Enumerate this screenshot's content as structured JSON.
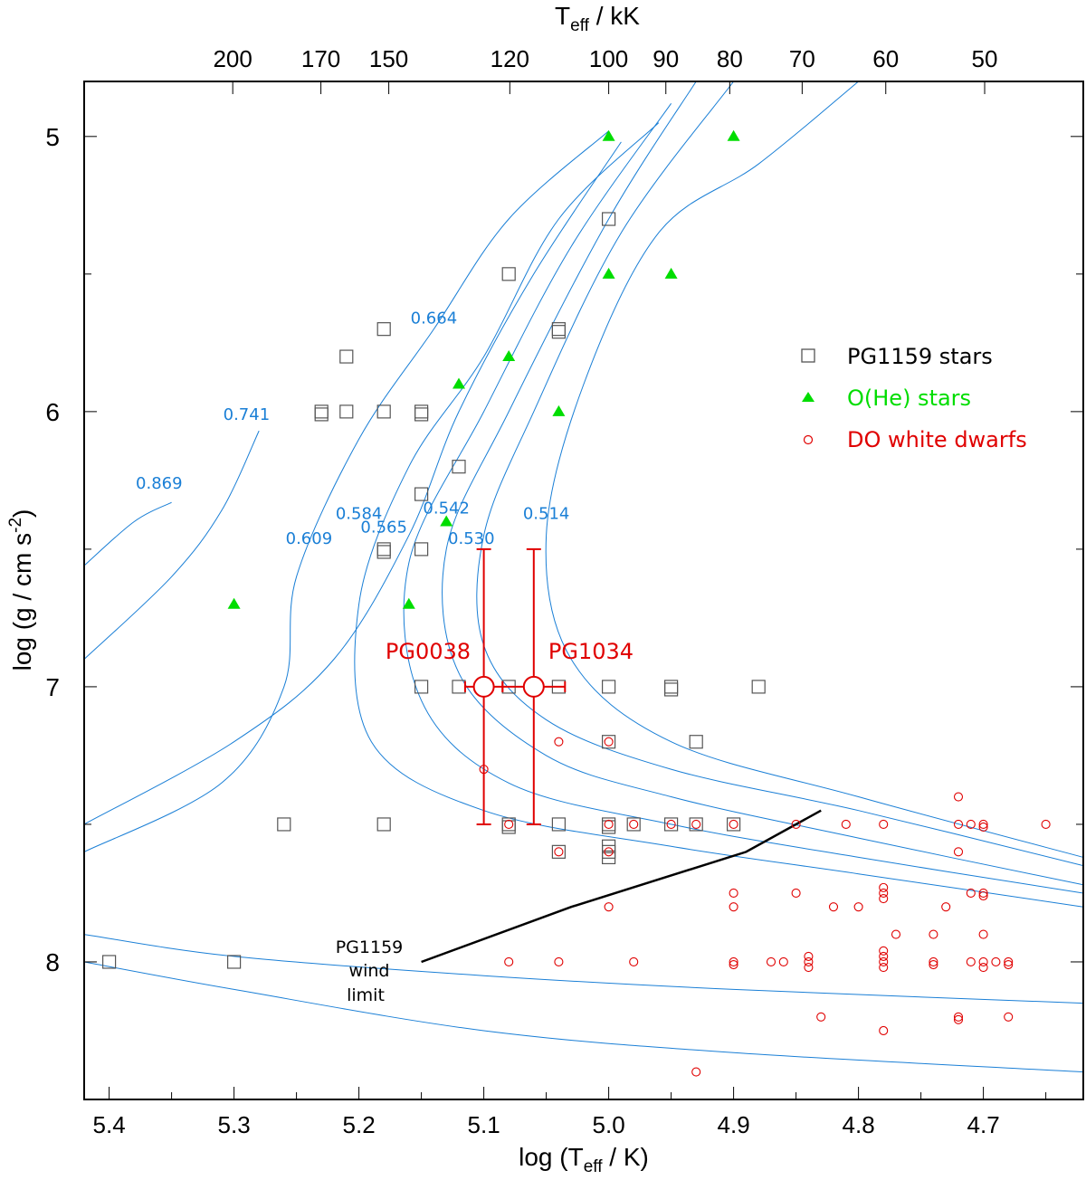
{
  "chart_data": {
    "type": "scatter",
    "title": "",
    "xlabel": "log (T",
    "xlabel_sub": "eff",
    "xlabel_tail": " / K)",
    "ylabel": "log (g / cm s",
    "ylabel_sup": "-2",
    "ylabel_tail": ")",
    "top_xlabel": "T",
    "top_xlabel_sub": "eff",
    "top_xlabel_tail": "  / kK",
    "xlim": [
      5.42,
      4.62
    ],
    "ylim": [
      4.8,
      8.5
    ],
    "x_ticks": [
      {
        "v": 5.4,
        "t": "5.4"
      },
      {
        "v": 5.3,
        "t": "5.3"
      },
      {
        "v": 5.2,
        "t": "5.2"
      },
      {
        "v": 5.1,
        "t": "5.1"
      },
      {
        "v": 5.0,
        "t": "5.0"
      },
      {
        "v": 4.9,
        "t": "4.9"
      },
      {
        "v": 4.8,
        "t": "4.8"
      },
      {
        "v": 4.7,
        "t": "4.7"
      }
    ],
    "y_ticks": [
      {
        "v": 5,
        "t": "5"
      },
      {
        "v": 6,
        "t": "6"
      },
      {
        "v": 7,
        "t": "7"
      },
      {
        "v": 8,
        "t": "8"
      }
    ],
    "top_ticks": [
      {
        "v": 200,
        "t": "200"
      },
      {
        "v": 170,
        "t": "170"
      },
      {
        "v": 150,
        "t": "150"
      },
      {
        "v": 120,
        "t": "120"
      },
      {
        "v": 100,
        "t": "100"
      },
      {
        "v": 90,
        "t": "90"
      },
      {
        "v": 80,
        "t": "80"
      },
      {
        "v": 70,
        "t": "70"
      },
      {
        "v": 60,
        "t": "60"
      },
      {
        "v": 50,
        "t": "50"
      }
    ],
    "legend": {
      "placement": "upper-right",
      "entries": [
        {
          "label": "PG1159 stars",
          "marker": "square",
          "color": "#555555"
        },
        {
          "label": "O(He) stars",
          "marker": "triangle",
          "color": "#00dd00"
        },
        {
          "label": "DO white dwarfs",
          "marker": "circle",
          "color": "#e00000"
        }
      ]
    },
    "colors": {
      "tracks": "#1a7fd6",
      "pg1159": "#555555",
      "ohe": "#00dd00",
      "do": "#e00000",
      "wind": "#000000"
    },
    "track_labels": [
      {
        "text": "0.869",
        "x": 5.36,
        "y": 6.28
      },
      {
        "text": "0.741",
        "x": 5.29,
        "y": 6.03
      },
      {
        "text": "0.664",
        "x": 5.14,
        "y": 5.68
      },
      {
        "text": "0.609",
        "x": 5.24,
        "y": 6.48
      },
      {
        "text": "0.584",
        "x": 5.2,
        "y": 6.39
      },
      {
        "text": "0.565",
        "x": 5.18,
        "y": 6.44
      },
      {
        "text": "0.542",
        "x": 5.13,
        "y": 6.37
      },
      {
        "text": "0.530",
        "x": 5.11,
        "y": 6.48
      },
      {
        "text": "0.514",
        "x": 5.05,
        "y": 6.39
      }
    ],
    "tracks": [
      {
        "mass": "0.869",
        "points": [
          [
            5.42,
            6.56
          ],
          [
            5.38,
            6.4
          ],
          [
            5.35,
            6.33
          ]
        ]
      },
      {
        "mass": "0.741",
        "points": [
          [
            5.42,
            6.9
          ],
          [
            5.35,
            6.6
          ],
          [
            5.31,
            6.36
          ],
          [
            5.28,
            6.07
          ]
        ]
      },
      {
        "mass": "0.664",
        "points": [
          [
            5.42,
            7.5
          ],
          [
            5.3,
            7.2
          ],
          [
            5.22,
            6.9
          ],
          [
            5.16,
            6.45
          ],
          [
            5.12,
            6.0
          ],
          [
            5.06,
            5.5
          ],
          [
            4.99,
            5.02
          ]
        ]
      },
      {
        "mass": "0.609",
        "points": [
          [
            5.42,
            7.6
          ],
          [
            5.31,
            7.35
          ],
          [
            5.26,
            7.0
          ],
          [
            5.25,
            6.6
          ],
          [
            5.2,
            6.1
          ],
          [
            5.14,
            5.7
          ],
          [
            5.08,
            5.3
          ],
          [
            5.0,
            4.98
          ]
        ]
      },
      {
        "mass": "0.584",
        "points": [
          [
            4.62,
            7.8
          ],
          [
            4.8,
            7.68
          ],
          [
            4.95,
            7.58
          ],
          [
            5.1,
            7.45
          ],
          [
            5.19,
            7.2
          ],
          [
            5.2,
            6.7
          ],
          [
            5.16,
            6.2
          ],
          [
            5.1,
            5.8
          ],
          [
            5.04,
            5.3
          ],
          [
            4.96,
            4.95
          ]
        ]
      },
      {
        "mass": "0.565",
        "points": [
          [
            4.62,
            7.75
          ],
          [
            4.8,
            7.62
          ],
          [
            4.95,
            7.5
          ],
          [
            5.08,
            7.35
          ],
          [
            5.15,
            7.05
          ],
          [
            5.16,
            6.55
          ],
          [
            5.1,
            6.0
          ],
          [
            5.03,
            5.4
          ],
          [
            4.95,
            4.88
          ]
        ]
      },
      {
        "mass": "0.542",
        "points": [
          [
            4.62,
            7.72
          ],
          [
            4.8,
            7.55
          ],
          [
            4.95,
            7.4
          ],
          [
            5.05,
            7.25
          ],
          [
            5.12,
            6.95
          ],
          [
            5.13,
            6.5
          ],
          [
            5.08,
            6.0
          ],
          [
            5.0,
            5.3
          ],
          [
            4.93,
            4.8
          ]
        ]
      },
      {
        "mass": "0.530",
        "points": [
          [
            4.62,
            7.65
          ],
          [
            4.8,
            7.45
          ],
          [
            4.95,
            7.3
          ],
          [
            5.05,
            7.12
          ],
          [
            5.1,
            6.85
          ],
          [
            5.1,
            6.45
          ],
          [
            5.06,
            6.0
          ],
          [
            4.99,
            5.35
          ],
          [
            4.9,
            4.8
          ]
        ]
      },
      {
        "mass": "0.514",
        "points": [
          [
            4.62,
            7.62
          ],
          [
            4.8,
            7.4
          ],
          [
            4.95,
            7.2
          ],
          [
            5.03,
            6.9
          ],
          [
            5.05,
            6.45
          ],
          [
            5.02,
            5.9
          ],
          [
            4.96,
            5.35
          ],
          [
            4.88,
            5.1
          ],
          [
            4.8,
            4.8
          ]
        ]
      },
      {
        "mass": "",
        "points": [
          [
            5.42,
            7.9
          ],
          [
            5.3,
            7.98
          ],
          [
            5.1,
            8.05
          ],
          [
            4.9,
            8.1
          ],
          [
            4.62,
            8.15
          ]
        ]
      },
      {
        "mass": "",
        "points": [
          [
            5.42,
            8.0
          ],
          [
            5.3,
            8.1
          ],
          [
            5.1,
            8.25
          ],
          [
            4.9,
            8.33
          ],
          [
            4.62,
            8.4
          ]
        ]
      }
    ],
    "pg1159": [
      [
        5.4,
        8.0
      ],
      [
        5.3,
        8.0
      ],
      [
        5.0,
        5.3
      ],
      [
        5.08,
        5.5
      ],
      [
        5.04,
        5.7
      ],
      [
        5.04,
        5.71
      ],
      [
        5.18,
        5.7
      ],
      [
        5.21,
        5.8
      ],
      [
        5.23,
        6.0
      ],
      [
        5.23,
        6.01
      ],
      [
        5.21,
        6.0
      ],
      [
        5.18,
        6.0
      ],
      [
        5.15,
        6.0
      ],
      [
        5.15,
        6.01
      ],
      [
        5.12,
        6.2
      ],
      [
        5.15,
        6.3
      ],
      [
        5.18,
        6.5
      ],
      [
        5.18,
        6.51
      ],
      [
        5.15,
        6.5
      ],
      [
        5.15,
        7.0
      ],
      [
        5.12,
        7.0
      ],
      [
        5.08,
        7.0
      ],
      [
        5.04,
        7.0
      ],
      [
        5.0,
        7.0
      ],
      [
        4.95,
        7.0
      ],
      [
        4.95,
        7.01
      ],
      [
        4.88,
        7.0
      ],
      [
        5.0,
        7.2
      ],
      [
        4.93,
        7.2
      ],
      [
        5.26,
        7.5
      ],
      [
        5.18,
        7.5
      ],
      [
        5.08,
        7.5
      ],
      [
        5.08,
        7.51
      ],
      [
        5.04,
        7.5
      ],
      [
        5.0,
        7.5
      ],
      [
        5.0,
        7.51
      ],
      [
        4.98,
        7.5
      ],
      [
        4.95,
        7.5
      ],
      [
        4.93,
        7.5
      ],
      [
        4.9,
        7.5
      ],
      [
        5.04,
        7.6
      ],
      [
        5.0,
        7.58
      ],
      [
        5.0,
        7.6
      ],
      [
        5.0,
        7.62
      ]
    ],
    "ohe": [
      [
        5.0,
        5.0
      ],
      [
        4.9,
        5.0
      ],
      [
        5.0,
        5.5
      ],
      [
        4.95,
        5.5
      ],
      [
        5.08,
        5.8
      ],
      [
        5.12,
        5.9
      ],
      [
        5.04,
        6.0
      ],
      [
        5.13,
        6.4
      ],
      [
        5.3,
        6.7
      ],
      [
        5.16,
        6.7
      ]
    ],
    "do": [
      [
        5.1,
        7.3
      ],
      [
        5.04,
        7.2
      ],
      [
        5.0,
        7.2
      ],
      [
        5.08,
        7.5
      ],
      [
        5.0,
        7.5
      ],
      [
        4.98,
        7.5
      ],
      [
        4.95,
        7.5
      ],
      [
        4.93,
        7.5
      ],
      [
        4.9,
        7.5
      ],
      [
        4.85,
        7.5
      ],
      [
        4.81,
        7.5
      ],
      [
        4.78,
        7.5
      ],
      [
        4.72,
        7.5
      ],
      [
        4.71,
        7.5
      ],
      [
        4.7,
        7.5
      ],
      [
        4.7,
        7.51
      ],
      [
        4.65,
        7.5
      ],
      [
        4.72,
        7.4
      ],
      [
        5.04,
        7.6
      ],
      [
        5.0,
        7.6
      ],
      [
        4.72,
        7.6
      ],
      [
        4.9,
        7.75
      ],
      [
        4.85,
        7.75
      ],
      [
        4.78,
        7.75
      ],
      [
        4.78,
        7.73
      ],
      [
        4.78,
        7.77
      ],
      [
        4.71,
        7.75
      ],
      [
        4.7,
        7.75
      ],
      [
        4.7,
        7.76
      ],
      [
        5.0,
        7.8
      ],
      [
        4.9,
        7.8
      ],
      [
        4.82,
        7.8
      ],
      [
        4.8,
        7.8
      ],
      [
        4.73,
        7.8
      ],
      [
        4.77,
        7.9
      ],
      [
        4.74,
        7.9
      ],
      [
        4.7,
        7.9
      ],
      [
        5.08,
        8.0
      ],
      [
        5.04,
        8.0
      ],
      [
        4.98,
        8.0
      ],
      [
        4.9,
        8.0
      ],
      [
        4.9,
        8.01
      ],
      [
        4.87,
        8.0
      ],
      [
        4.86,
        8.0
      ],
      [
        4.84,
        8.0
      ],
      [
        4.84,
        7.98
      ],
      [
        4.84,
        8.02
      ],
      [
        4.78,
        8.0
      ],
      [
        4.78,
        7.98
      ],
      [
        4.78,
        7.96
      ],
      [
        4.78,
        8.02
      ],
      [
        4.74,
        8.0
      ],
      [
        4.74,
        8.01
      ],
      [
        4.71,
        8.0
      ],
      [
        4.7,
        8.0
      ],
      [
        4.7,
        8.02
      ],
      [
        4.69,
        8.0
      ],
      [
        4.68,
        8.0
      ],
      [
        4.68,
        8.01
      ],
      [
        4.83,
        8.2
      ],
      [
        4.78,
        8.25
      ],
      [
        4.72,
        8.2
      ],
      [
        4.72,
        8.21
      ],
      [
        4.68,
        8.2
      ],
      [
        4.93,
        8.4
      ]
    ],
    "errorbars": [
      {
        "name": "PG0038",
        "x": 5.1,
        "y": 7.0,
        "xerr": 0.015,
        "ylo": 6.5,
        "yhi": 7.5
      },
      {
        "name": "PG1034",
        "x": 5.06,
        "y": 7.0,
        "xerr": 0.025,
        "ylo": 6.5,
        "yhi": 7.5
      }
    ],
    "wind_limit": {
      "label_lines": [
        "PG1159",
        "wind",
        "limit"
      ],
      "points": [
        [
          5.15,
          8.0
        ],
        [
          5.03,
          7.8
        ],
        [
          4.89,
          7.6
        ],
        [
          4.83,
          7.45
        ]
      ]
    }
  }
}
